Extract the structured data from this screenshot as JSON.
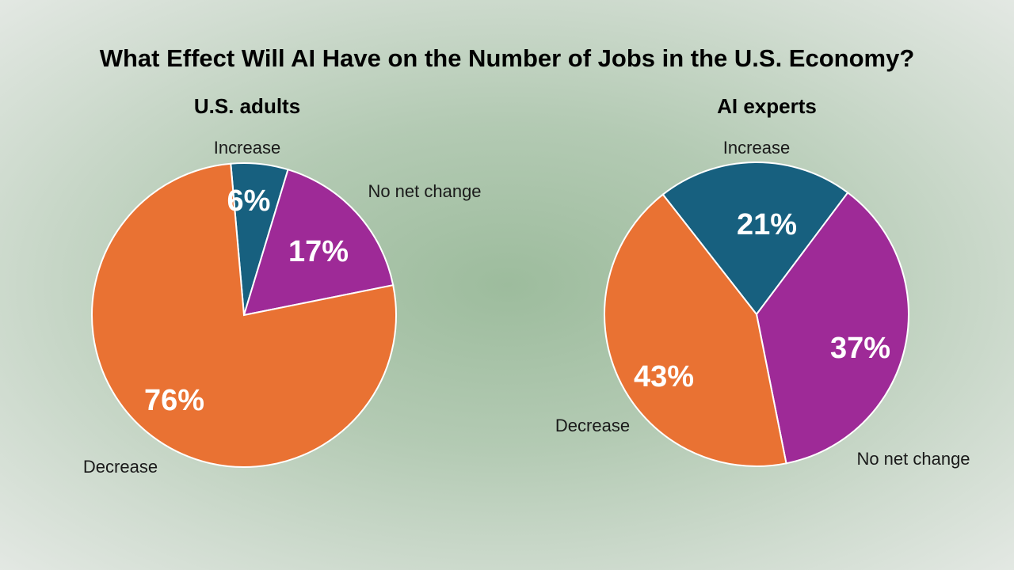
{
  "title": "What Effect Will AI Have on the Number of Jobs in the U.S. Economy?",
  "chart_data": [
    {
      "type": "pie",
      "title": "U.S. adults",
      "categories": [
        "Increase",
        "No net change",
        "Decrease"
      ],
      "values": [
        6,
        17,
        76
      ],
      "value_labels": [
        "6%",
        "17%",
        "76%"
      ],
      "colors": [
        "#17607f",
        "#9e2a97",
        "#e97233"
      ]
    },
    {
      "type": "pie",
      "title": "AI experts",
      "categories": [
        "Increase",
        "No net change",
        "Decrease"
      ],
      "values": [
        21,
        37,
        43
      ],
      "value_labels": [
        "21%",
        "37%",
        "43%"
      ],
      "colors": [
        "#17607f",
        "#9e2a97",
        "#e97233"
      ]
    }
  ]
}
